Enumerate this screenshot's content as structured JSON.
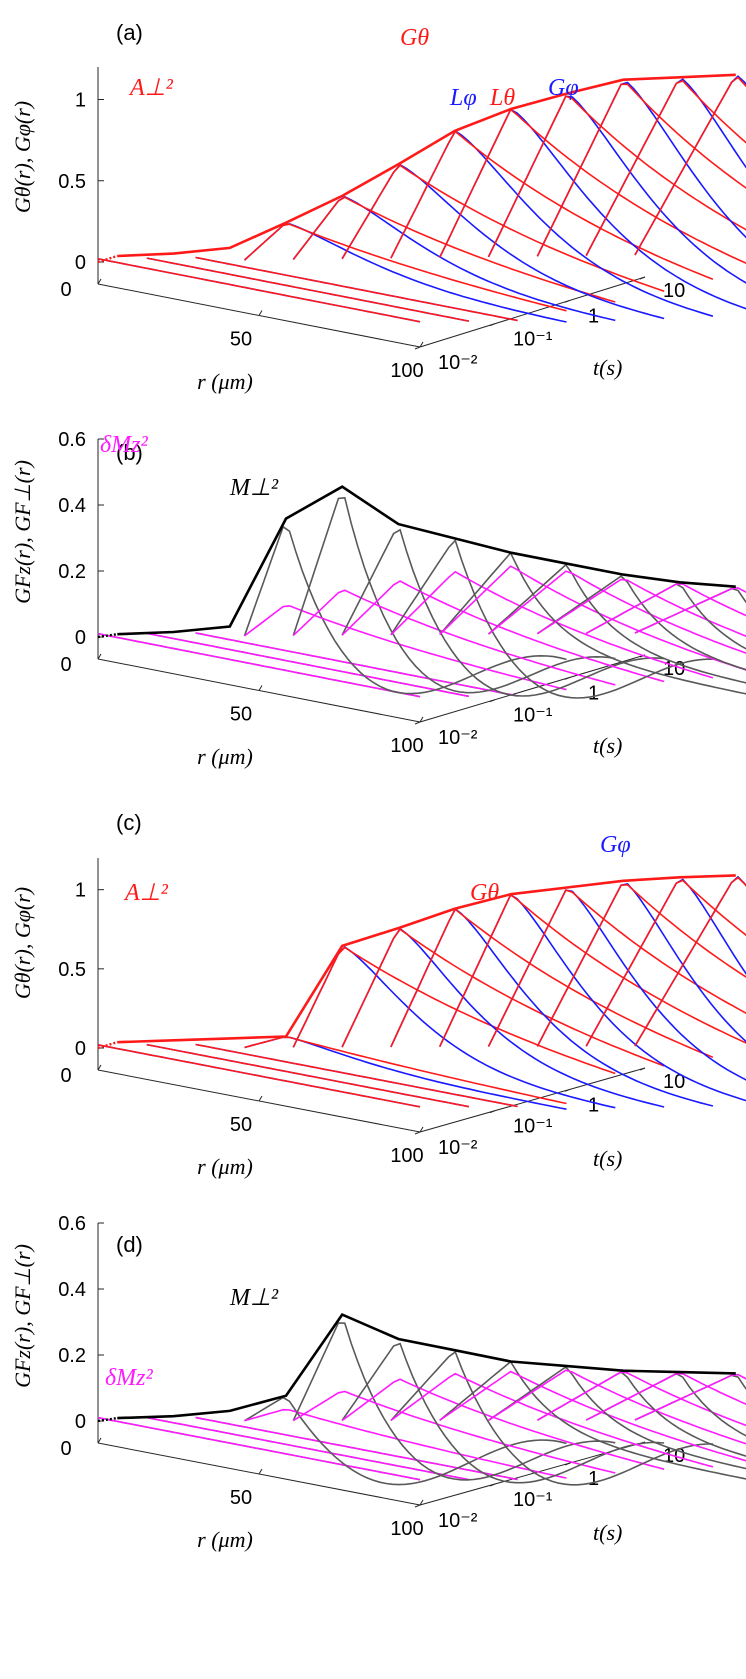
{
  "chart_data": [
    {
      "type": "line",
      "panel_label": "(a)",
      "ylabel": "Gθ(r), Gφ(r)",
      "xlabel": "r (μm)",
      "tlabel": "t(s)",
      "r_range": [
        0,
        100
      ],
      "r_ticks": [
        "0",
        "50",
        "100"
      ],
      "y_range": [
        0,
        1.2
      ],
      "y_ticks": [
        {
          "v": 0,
          "t": "0"
        },
        {
          "v": 0.5,
          "t": "0.5"
        },
        {
          "v": 1,
          "t": "1"
        }
      ],
      "t_ticks": [
        {
          "k": 0,
          "t": "10⁻²"
        },
        {
          "k": 1,
          "t": "10⁻¹"
        },
        {
          "k": 2,
          "t": "1"
        },
        {
          "k": 3,
          "t": "10"
        }
      ],
      "n_traces": 12,
      "series": [
        {
          "name": "Gθ",
          "color": "#ff1a1a",
          "envelope_peaks": [
            0.06,
            0.08,
            0.12,
            0.28,
            0.45,
            0.65,
            0.86,
            1.0,
            1.1,
            1.19,
            1.21,
            1.23
          ],
          "decay": 80
        },
        {
          "name": "Gφ",
          "color": "#1a1aff",
          "decay": 34
        }
      ],
      "envelope_name": "A⊥²",
      "annotations": [
        {
          "text": "A⊥²",
          "color": "#ff1a1a"
        },
        {
          "text": "Gθ",
          "color": "#ff1a1a"
        },
        {
          "text": "Lφ",
          "color": "#1a1aff"
        },
        {
          "text": "Lθ",
          "color": "#ff1a1a"
        },
        {
          "text": "Gφ",
          "color": "#1a1aff"
        }
      ]
    },
    {
      "type": "line",
      "panel_label": "(b)",
      "ylabel": "GFz(r), GF⊥(r)",
      "xlabel": "r (μm)",
      "tlabel": "t(s)",
      "r_range": [
        0,
        100
      ],
      "r_ticks": [
        "0",
        "50",
        "100"
      ],
      "y_range": [
        0,
        0.6
      ],
      "y_ticks": [
        {
          "v": 0,
          "t": "0"
        },
        {
          "v": 0.2,
          "t": "0.2"
        },
        {
          "v": 0.4,
          "t": "0.4"
        },
        {
          "v": 0.6,
          "t": "0.6"
        }
      ],
      "t_ticks": [
        {
          "k": 0,
          "t": "10⁻²"
        },
        {
          "k": 1,
          "t": "10⁻¹"
        },
        {
          "k": 2,
          "t": "1"
        },
        {
          "k": 3,
          "t": "10"
        }
      ],
      "n_traces": 12,
      "series": [
        {
          "name": "GF⊥",
          "color": "#595959",
          "envelope_peaks": [
            0.02,
            0.03,
            0.05,
            0.38,
            0.48,
            0.37,
            0.33,
            0.29,
            0.26,
            0.23,
            0.21,
            0.2
          ]
        },
        {
          "name": "GFz",
          "color": "#ff1aff",
          "envelope_peaks": [
            0.01,
            0.02,
            0.03,
            0.12,
            0.17,
            0.2,
            0.23,
            0.25,
            0.24,
            0.22,
            0.21,
            0.2
          ]
        }
      ],
      "annotations": [
        {
          "text": "δMz²",
          "color": "#ff1aff"
        },
        {
          "text": "M⊥²",
          "color": "#000000"
        }
      ]
    },
    {
      "type": "line",
      "panel_label": "(c)",
      "ylabel": "Gθ(r), Gφ(r)",
      "xlabel": "r (μm)",
      "tlabel": "t(s)",
      "r_range": [
        0,
        100
      ],
      "r_ticks": [
        "0",
        "50",
        "100"
      ],
      "y_range": [
        0,
        1.2
      ],
      "y_ticks": [
        {
          "v": 0,
          "t": "0"
        },
        {
          "v": 0.5,
          "t": "0.5"
        },
        {
          "v": 1,
          "t": "1"
        }
      ],
      "t_ticks": [
        {
          "k": 0,
          "t": "10⁻²"
        },
        {
          "k": 1,
          "t": "10⁻¹"
        },
        {
          "k": 2,
          "t": "1"
        },
        {
          "k": 3,
          "t": "10"
        }
      ],
      "n_traces": 12,
      "series": [
        {
          "name": "Gθ",
          "color": "#ff1a1a",
          "envelope_peaks": [
            0.06,
            0.08,
            0.1,
            0.12,
            0.7,
            0.82,
            0.95,
            1.05,
            1.1,
            1.15,
            1.18,
            1.2
          ],
          "decay": 90
        },
        {
          "name": "Gφ",
          "color": "#1a1aff",
          "decay": 30
        }
      ],
      "envelope_name": "A⊥²",
      "annotations": [
        {
          "text": "A⊥²",
          "color": "#ff1a1a"
        },
        {
          "text": "Gθ",
          "color": "#ff1a1a"
        },
        {
          "text": "Gφ",
          "color": "#1a1aff"
        }
      ]
    },
    {
      "type": "line",
      "panel_label": "(d)",
      "ylabel": "GFz(r), GF⊥(r)",
      "xlabel": "r (μm)",
      "tlabel": "t(s)",
      "r_range": [
        0,
        100
      ],
      "r_ticks": [
        "0",
        "50",
        "100"
      ],
      "y_range": [
        0,
        0.6
      ],
      "y_ticks": [
        {
          "v": 0,
          "t": "0"
        },
        {
          "v": 0.2,
          "t": "0.2"
        },
        {
          "v": 0.4,
          "t": "0.4"
        },
        {
          "v": 0.6,
          "t": "0.6"
        }
      ],
      "t_ticks": [
        {
          "k": 0,
          "t": "10⁻²"
        },
        {
          "k": 1,
          "t": "10⁻¹"
        },
        {
          "k": 2,
          "t": "1"
        },
        {
          "k": 3,
          "t": "10"
        }
      ],
      "n_traces": 12,
      "series": [
        {
          "name": "GF⊥",
          "color": "#595959",
          "envelope_peaks": [
            0.02,
            0.03,
            0.05,
            0.1,
            0.35,
            0.28,
            0.25,
            0.22,
            0.21,
            0.2,
            0.2,
            0.2
          ]
        },
        {
          "name": "GFz",
          "color": "#ff1aff",
          "envelope_peaks": [
            0.01,
            0.02,
            0.03,
            0.06,
            0.12,
            0.16,
            0.18,
            0.19,
            0.2,
            0.2,
            0.2,
            0.2
          ]
        }
      ],
      "annotations": [
        {
          "text": "M⊥²",
          "color": "#000000"
        },
        {
          "text": "δMz²",
          "color": "#ff1aff"
        }
      ]
    }
  ]
}
